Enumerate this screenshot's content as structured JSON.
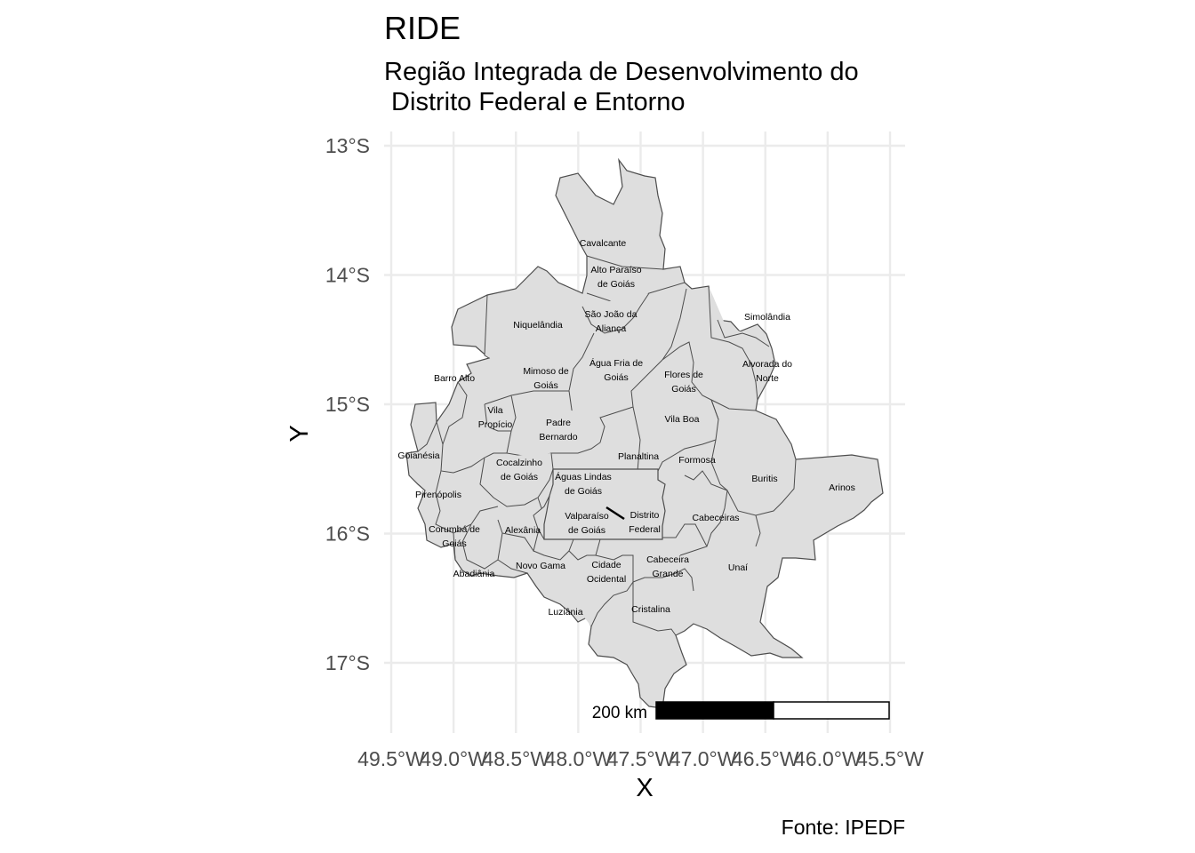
{
  "map": {
    "title": "RIDE",
    "subtitle_line1": "Região Integrada de Desenvolvimento do",
    "subtitle_line2": " Distrito Federal e Entorno",
    "x_axis_title": "X",
    "y_axis_title": "Y",
    "caption": "Fonte: IPEDF",
    "scale_bar_label": "200 km",
    "fill_color": "#dedede",
    "border_color": "#4d4d4d",
    "grid_color": "#ebebeb",
    "y_ticks": [
      {
        "value": -13,
        "label": "13°S"
      },
      {
        "value": -14,
        "label": "14°S"
      },
      {
        "value": -15,
        "label": "15°S"
      },
      {
        "value": -16,
        "label": "16°S"
      },
      {
        "value": -17,
        "label": "17°S"
      }
    ],
    "x_ticks": [
      {
        "value": -49.5,
        "label": "49.5°W"
      },
      {
        "value": -49.0,
        "label": "49.0°W"
      },
      {
        "value": -48.5,
        "label": "48.5°W"
      },
      {
        "value": -48.0,
        "label": "48.0°W"
      },
      {
        "value": -47.5,
        "label": "47.5°W"
      },
      {
        "value": -47.0,
        "label": "47.0°W"
      },
      {
        "value": -46.5,
        "label": "46.5°W"
      },
      {
        "value": -46.0,
        "label": "46.0°W"
      },
      {
        "value": -45.5,
        "label": "45.5°W"
      }
    ],
    "municipalities": [
      {
        "name": "Cavalcante",
        "lines": [
          "Cavalcante"
        ],
        "lon": -47.3,
        "lat": -13.77
      },
      {
        "name": "Alto Paraíso de Goiás",
        "lines": [
          "Alto Paraíso",
          "de Goiás"
        ],
        "lon": -47.2,
        "lat": -14.07
      },
      {
        "name": "São João da Aliança",
        "lines": [
          "São João da",
          "Aliança"
        ],
        "lon": -47.27,
        "lat": -14.71
      },
      {
        "name": "Simolândia",
        "lines": [
          "Simolândia"
        ],
        "lon": -46.45,
        "lat": -14.36
      },
      {
        "name": "Niquelândia",
        "lines": [
          "Niquelândia"
        ],
        "lon": -48.46,
        "lat": -14.39
      },
      {
        "name": "Alvorada do Norte",
        "lines": [
          "Alvorada do",
          "Norte"
        ],
        "lon": -46.45,
        "lat": -14.88
      },
      {
        "name": "Água Fria de Goiás",
        "lines": [
          "Água Fria de",
          "Goiás"
        ],
        "lon": -47.77,
        "lat": -14.98
      },
      {
        "name": "Mimoso de Goiás",
        "lines": [
          "Mimoso de",
          "Goiás"
        ],
        "lon": -48.16,
        "lat": -15.06
      },
      {
        "name": "Flores de Goiás",
        "lines": [
          "Flores de",
          "Goiás"
        ],
        "lon": -47.04,
        "lat": -14.45
      },
      {
        "name": "Barro Alto",
        "lines": [
          "Barro Alto"
        ],
        "lon": -48.91,
        "lat": -14.97
      },
      {
        "name": "Vila Propício",
        "lines": [
          "Vila",
          "Propício"
        ],
        "lon": -48.88,
        "lat": -15.46
      },
      {
        "name": "Padre Bernardo",
        "lines": [
          "Padre",
          "Bernardo"
        ],
        "lon": -48.28,
        "lat": -15.16
      },
      {
        "name": "Vila Boa",
        "lines": [
          "Vila Boa"
        ],
        "lon": -47.06,
        "lat": -15.03
      },
      {
        "name": "Goianésia",
        "lines": [
          "Goianésia"
        ],
        "lon": -49.11,
        "lat": -15.31
      },
      {
        "name": "Planaltina",
        "lines": [
          "Planaltina"
        ],
        "lon": -47.61,
        "lat": -15.45
      },
      {
        "name": "Formosa",
        "lines": [
          "Formosa"
        ],
        "lon": -47.33,
        "lat": -15.54
      },
      {
        "name": "Cocalzinho de Goiás",
        "lines": [
          "Cocalzinho",
          "de Goiás"
        ],
        "lon": -48.77,
        "lat": -15.79
      },
      {
        "name": "Águas Lindas de Goiás",
        "lines": [
          "Águas Lindas",
          "de Goiás"
        ],
        "lon": -48.28,
        "lat": -15.76
      },
      {
        "name": "Buritis",
        "lines": [
          "Buritis"
        ],
        "lon": -46.42,
        "lat": -15.62
      },
      {
        "name": "Arinos",
        "lines": [
          "Arinos"
        ],
        "lon": -46.1,
        "lat": -15.92
      },
      {
        "name": "Pirenópolis",
        "lines": [
          "Pirenópolis"
        ],
        "lon": -48.96,
        "lat": -15.85
      },
      {
        "name": "Valparaíso de Goiás",
        "lines": [
          "Valparaíso",
          "de Goiás"
        ],
        "lon": -47.98,
        "lat": -16.07
      },
      {
        "name": "Distrito Federal",
        "lines": [
          "Distrito",
          "Federal"
        ],
        "lon": -47.8,
        "lat": -15.78
      },
      {
        "name": "Cabeceiras",
        "lines": [
          "Cabeceiras"
        ],
        "lon": -46.93,
        "lat": -15.8
      },
      {
        "name": "Corumbá de Goiás",
        "lines": [
          "Corumbá de",
          "Goiás"
        ],
        "lon": -48.81,
        "lat": -15.92
      },
      {
        "name": "Alexânia",
        "lines": [
          "Alexânia"
        ],
        "lon": -48.51,
        "lat": -16.08
      },
      {
        "name": "Cabeceira Grande",
        "lines": [
          "Cabeceira",
          "Grande"
        ],
        "lon": -47.08,
        "lat": -16.03
      },
      {
        "name": "Unaí",
        "lines": [
          "Unaí"
        ],
        "lon": -46.9,
        "lat": -16.36
      },
      {
        "name": "Novo Gama",
        "lines": [
          "Novo Gama"
        ],
        "lon": -48.04,
        "lat": -16.06
      },
      {
        "name": "Cidade Ocidental",
        "lines": [
          "Cidade",
          "Ocidental"
        ],
        "lon": -47.93,
        "lat": -16.08
      },
      {
        "name": "Abadiânia",
        "lines": [
          "Abadiânia"
        ],
        "lon": -48.71,
        "lat": -16.2
      },
      {
        "name": "Luziânia",
        "lines": [
          "Luziânia"
        ],
        "lon": -47.95,
        "lat": -16.25
      },
      {
        "name": "Cristalina",
        "lines": [
          "Cristalina"
        ],
        "lon": -47.61,
        "lat": -16.77
      }
    ]
  }
}
